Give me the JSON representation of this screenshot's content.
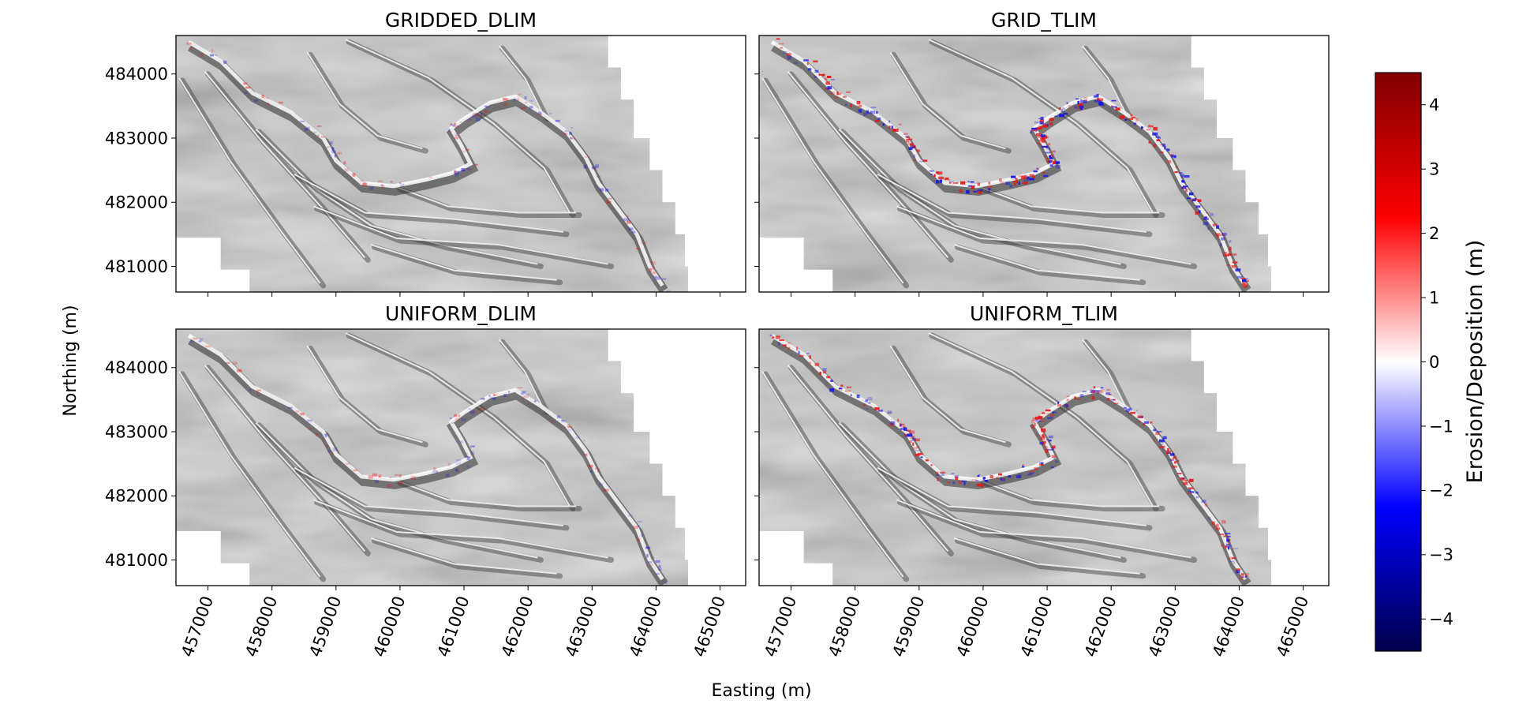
{
  "chart_data": {
    "type": "heatmap",
    "xlabel": "Easting (m)",
    "ylabel": "Northing (m)",
    "xticks": [
      "457000",
      "458000",
      "459000",
      "460000",
      "461000",
      "462000",
      "463000",
      "464000",
      "465000"
    ],
    "yticks": [
      "484000",
      "483000",
      "482000",
      "481000"
    ],
    "xlim": [
      456500,
      465400
    ],
    "ylim": [
      480600,
      484600
    ],
    "panels": [
      {
        "title": "GRIDDED_DLIM",
        "change_intensity": 0.25
      },
      {
        "title": "GRID_TLIM",
        "change_intensity": 1.0
      },
      {
        "title": "UNIFORM_DLIM",
        "change_intensity": 0.22
      },
      {
        "title": "UNIFORM_TLIM",
        "change_intensity": 0.85
      }
    ],
    "colorbar": {
      "label": "Erosion/Deposition (m)",
      "cmap": "seismic",
      "range": [
        -4.5,
        4.5
      ],
      "ticks": [
        "4",
        "3",
        "2",
        "1",
        "0",
        "−1",
        "−2",
        "−3",
        "−4"
      ],
      "colors": [
        "#00004c",
        "#0000ff",
        "#ffffff",
        "#ff0000",
        "#800000"
      ]
    },
    "background": "hillshade (greyscale)",
    "grid": false
  }
}
